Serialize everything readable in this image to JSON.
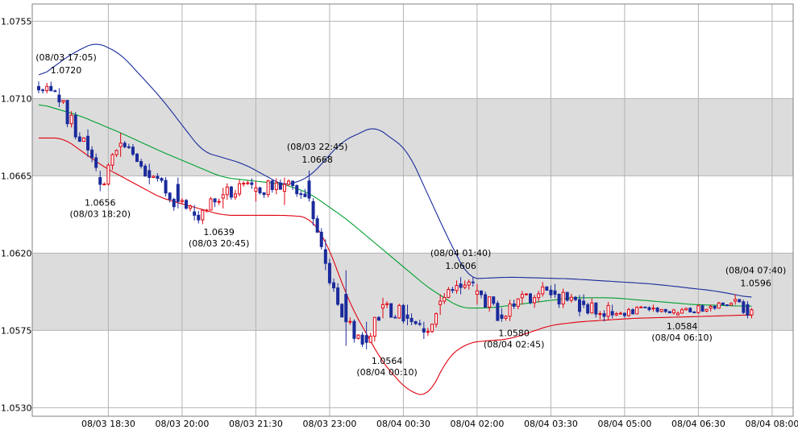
{
  "chart_data": {
    "type": "candlestick",
    "title": "",
    "xlabel": "",
    "ylabel": "",
    "ylim": [
      1.0525,
      1.0765
    ],
    "y_ticks": [
      "1.0755",
      "1.0710",
      "1.0665",
      "1.0620",
      "1.0575",
      "1.0530"
    ],
    "x_ticks": [
      "08/03 18:30",
      "08/03 20:00",
      "08/03 21:30",
      "08/03 23:00",
      "08/04 00:30",
      "08/04 02:00",
      "08/04 03:30",
      "08/04 05:00",
      "08/04 06:30",
      "08/04 08:00"
    ],
    "bar_interval_minutes": 5,
    "first_bar": "08/03 17:05",
    "grid": true,
    "shaded_bands": [
      [
        1.0665,
        1.071
      ],
      [
        1.0575,
        1.062
      ]
    ],
    "colors": {
      "up": "#e0000f",
      "down": "#1a2b9c",
      "upper_band": "#1a2b9c",
      "middle_band": "#00a030",
      "lower_band": "#e0000f",
      "band_fill": "#dcdcdc",
      "grid": "#b4b4b4"
    },
    "annotations": [
      {
        "time": "08/03 17:05",
        "value": "1.0720",
        "placement": "above"
      },
      {
        "time": "08/03 18:20",
        "value": "1.0656",
        "placement": "below"
      },
      {
        "time": "08/03 20:45",
        "value": "1.0639",
        "placement": "below"
      },
      {
        "time": "08/03 22:45",
        "value": "1.0668",
        "placement": "above"
      },
      {
        "time": "08/04 00:10",
        "value": "1.0564",
        "placement": "below"
      },
      {
        "time": "08/04 01:40",
        "value": "1.0606",
        "placement": "above"
      },
      {
        "time": "08/04 02:45",
        "value": "1.0580",
        "placement": "below"
      },
      {
        "time": "08/04 06:10",
        "value": "1.0584",
        "placement": "below"
      },
      {
        "time": "08/04 07:40",
        "value": "1.0596",
        "placement": "above"
      }
    ],
    "ohlc_anchors": [
      [
        0,
        1.0717,
        1.072,
        1.0713,
        1.0715
      ],
      [
        5,
        1.0712,
        1.0716,
        1.0705,
        1.0708
      ],
      [
        12,
        1.0688,
        1.0692,
        1.0676,
        1.068
      ],
      [
        15,
        1.0664,
        1.0668,
        1.0656,
        1.066
      ],
      [
        20,
        1.0682,
        1.069,
        1.0676,
        1.0684
      ],
      [
        27,
        1.0668,
        1.0672,
        1.066,
        1.0664
      ],
      [
        34,
        1.066,
        1.0664,
        1.0646,
        1.065
      ],
      [
        38,
        1.0644,
        1.0648,
        1.0639,
        1.0642
      ],
      [
        45,
        1.0652,
        1.0658,
        1.0646,
        1.0654
      ],
      [
        53,
        1.0656,
        1.0662,
        1.065,
        1.0658
      ],
      [
        60,
        1.0656,
        1.0664,
        1.0648,
        1.066
      ],
      [
        66,
        1.0662,
        1.0668,
        1.065,
        1.0652
      ],
      [
        67,
        1.065,
        1.0652,
        1.0636,
        1.064
      ],
      [
        70,
        1.0622,
        1.0628,
        1.061,
        1.0614
      ],
      [
        75,
        1.0596,
        1.061,
        1.0566,
        1.058
      ],
      [
        80,
        1.0572,
        1.058,
        1.0564,
        1.0568
      ],
      [
        84,
        1.0588,
        1.0594,
        1.0582,
        1.059
      ],
      [
        90,
        1.0584,
        1.059,
        1.0578,
        1.0582
      ],
      [
        94,
        1.0576,
        1.058,
        1.057,
        1.0574
      ],
      [
        98,
        1.059,
        1.0596,
        1.0584,
        1.0592
      ],
      [
        103,
        1.0602,
        1.0606,
        1.0596,
        1.06
      ],
      [
        107,
        1.0596,
        1.0602,
        1.059,
        1.0598
      ],
      [
        113,
        1.0584,
        1.0588,
        1.058,
        1.0582
      ],
      [
        118,
        1.0594,
        1.0598,
        1.059,
        1.0596
      ],
      [
        126,
        1.0598,
        1.0602,
        1.0594,
        1.0596
      ],
      [
        133,
        1.0592,
        1.0596,
        1.0588,
        1.059
      ],
      [
        140,
        1.0586,
        1.059,
        1.0582,
        1.0584
      ],
      [
        150,
        1.0588,
        1.059,
        1.0586,
        1.0588
      ],
      [
        156,
        1.0584,
        1.0586,
        1.0584,
        1.0585
      ],
      [
        164,
        1.0588,
        1.059,
        1.0586,
        1.0589
      ],
      [
        170,
        1.0592,
        1.0596,
        1.059,
        1.0593
      ],
      [
        173,
        1.059,
        1.0592,
        1.0582,
        1.0584
      ],
      [
        174,
        1.0584,
        1.0588,
        1.0582,
        1.0587
      ]
    ],
    "bollinger_bands": {
      "upper": [
        [
          0,
          1.0722
        ],
        [
          8,
          1.0736
        ],
        [
          14,
          1.0743
        ],
        [
          20,
          1.0736
        ],
        [
          30,
          1.071
        ],
        [
          40,
          1.0679
        ],
        [
          50,
          1.0672
        ],
        [
          60,
          1.0659
        ],
        [
          66,
          1.0664
        ],
        [
          74,
          1.0685
        ],
        [
          82,
          1.0694
        ],
        [
          90,
          1.068
        ],
        [
          100,
          1.0628
        ],
        [
          105,
          1.0605
        ],
        [
          115,
          1.0606
        ],
        [
          130,
          1.0605
        ],
        [
          150,
          1.0602
        ],
        [
          165,
          1.0598
        ],
        [
          174,
          1.0594
        ]
      ],
      "middle": [
        [
          0,
          1.0707
        ],
        [
          10,
          1.07
        ],
        [
          20,
          1.069
        ],
        [
          30,
          1.0679
        ],
        [
          45,
          1.0664
        ],
        [
          60,
          1.066
        ],
        [
          66,
          1.0655
        ],
        [
          75,
          1.064
        ],
        [
          85,
          1.062
        ],
        [
          95,
          1.06
        ],
        [
          103,
          1.0588
        ],
        [
          110,
          1.0588
        ],
        [
          120,
          1.0591
        ],
        [
          130,
          1.0594
        ],
        [
          140,
          1.0594
        ],
        [
          150,
          1.0592
        ],
        [
          160,
          1.059
        ],
        [
          174,
          1.0589
        ]
      ],
      "lower": [
        [
          0,
          1.0687
        ],
        [
          6,
          1.0687
        ],
        [
          16,
          1.067
        ],
        [
          30,
          1.0652
        ],
        [
          45,
          1.0642
        ],
        [
          60,
          1.0642
        ],
        [
          66,
          1.0641
        ],
        [
          70,
          1.0628
        ],
        [
          76,
          1.059
        ],
        [
          84,
          1.0556
        ],
        [
          90,
          1.054
        ],
        [
          95,
          1.0536
        ],
        [
          100,
          1.056
        ],
        [
          105,
          1.0568
        ],
        [
          115,
          1.057
        ],
        [
          125,
          1.0578
        ],
        [
          132,
          1.058
        ],
        [
          145,
          1.0582
        ],
        [
          160,
          1.0583
        ],
        [
          174,
          1.0584
        ]
      ]
    }
  }
}
